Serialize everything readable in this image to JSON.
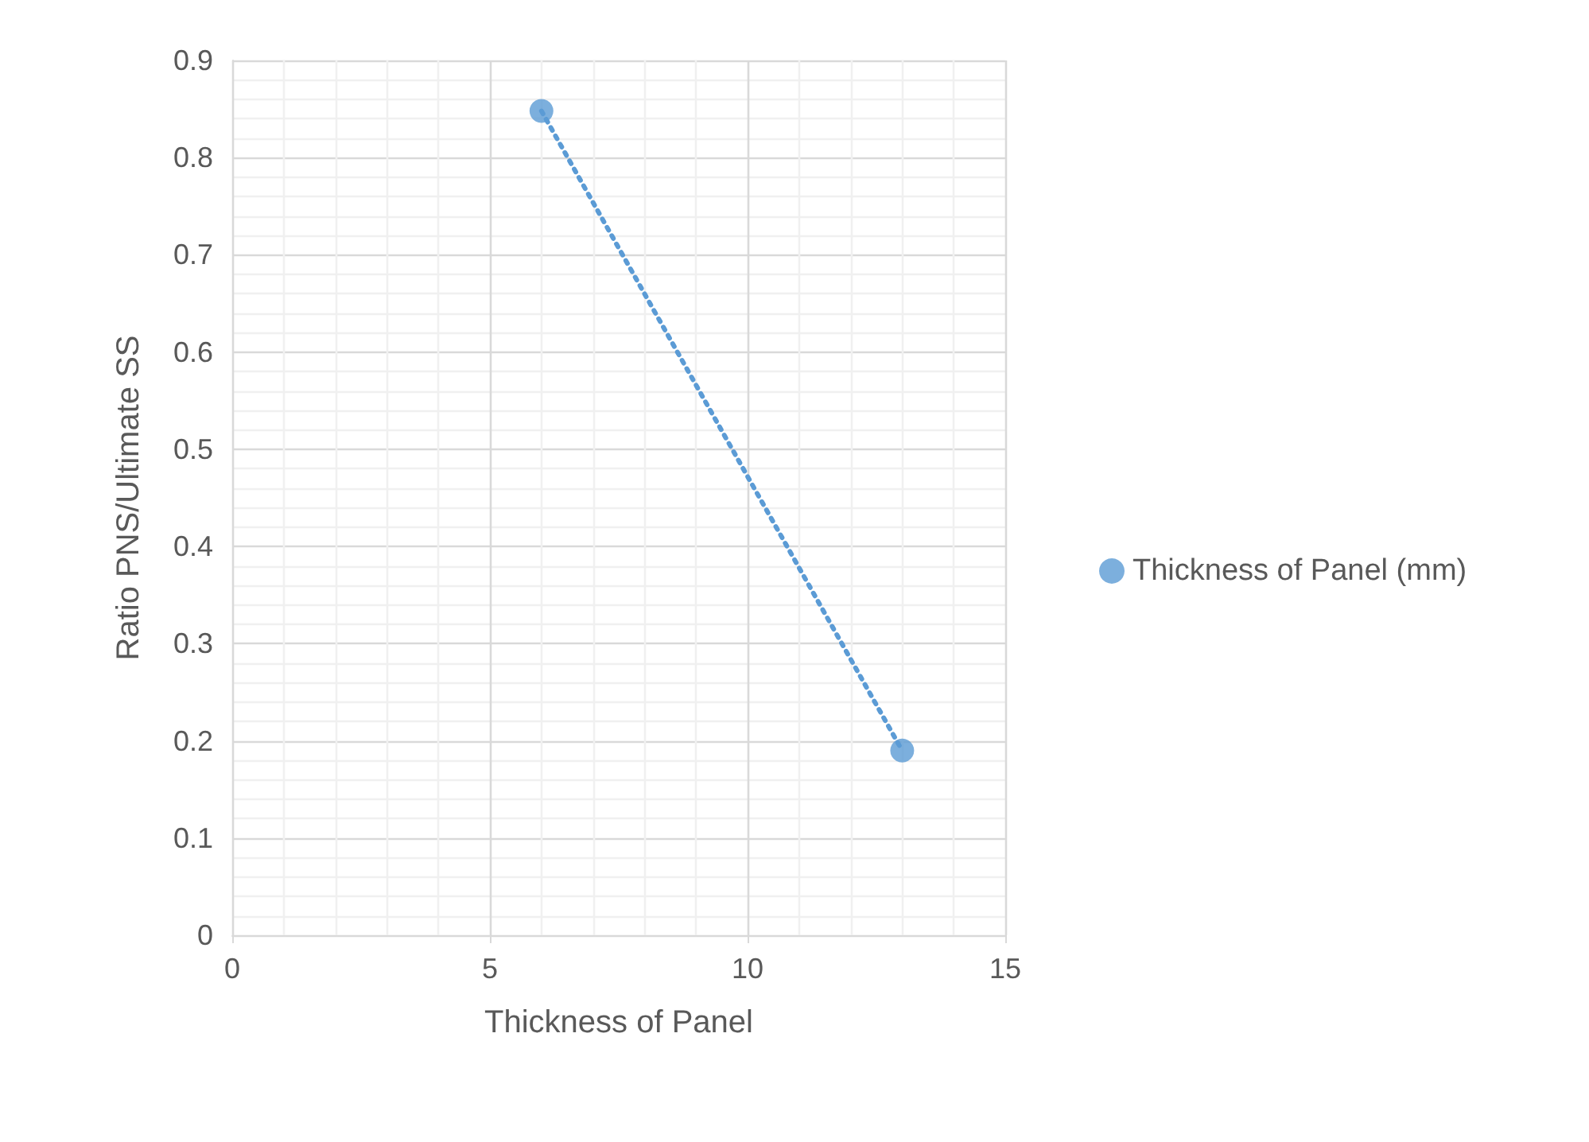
{
  "chart_data": {
    "type": "scatter",
    "xlabel": "Thickness of Panel",
    "ylabel": "Ratio PNS/Ultimate SS",
    "series": [
      {
        "name": "Thickness of Panel (mm)",
        "color": "#5b9bd5",
        "values": [
          0.848,
          0.19
        ],
        "marker": "circle"
      },
      {
        "type": "line",
        "color": "#5b9bd5",
        "values": [
          0.848,
          0.19
        ],
        "marker": "none",
        "line_style": "dotted"
      }
    ],
    "x": [
      6,
      13
    ],
    "xlim": [
      0,
      15
    ],
    "xticks": [
      0,
      5,
      10,
      15
    ],
    "ylim": [
      0,
      0.9
    ],
    "yticks": [
      0,
      0.1,
      0.2,
      0.3,
      0.4,
      0.5,
      0.6,
      0.7,
      0.8,
      0.9
    ],
    "grid": true,
    "legend": "right"
  }
}
